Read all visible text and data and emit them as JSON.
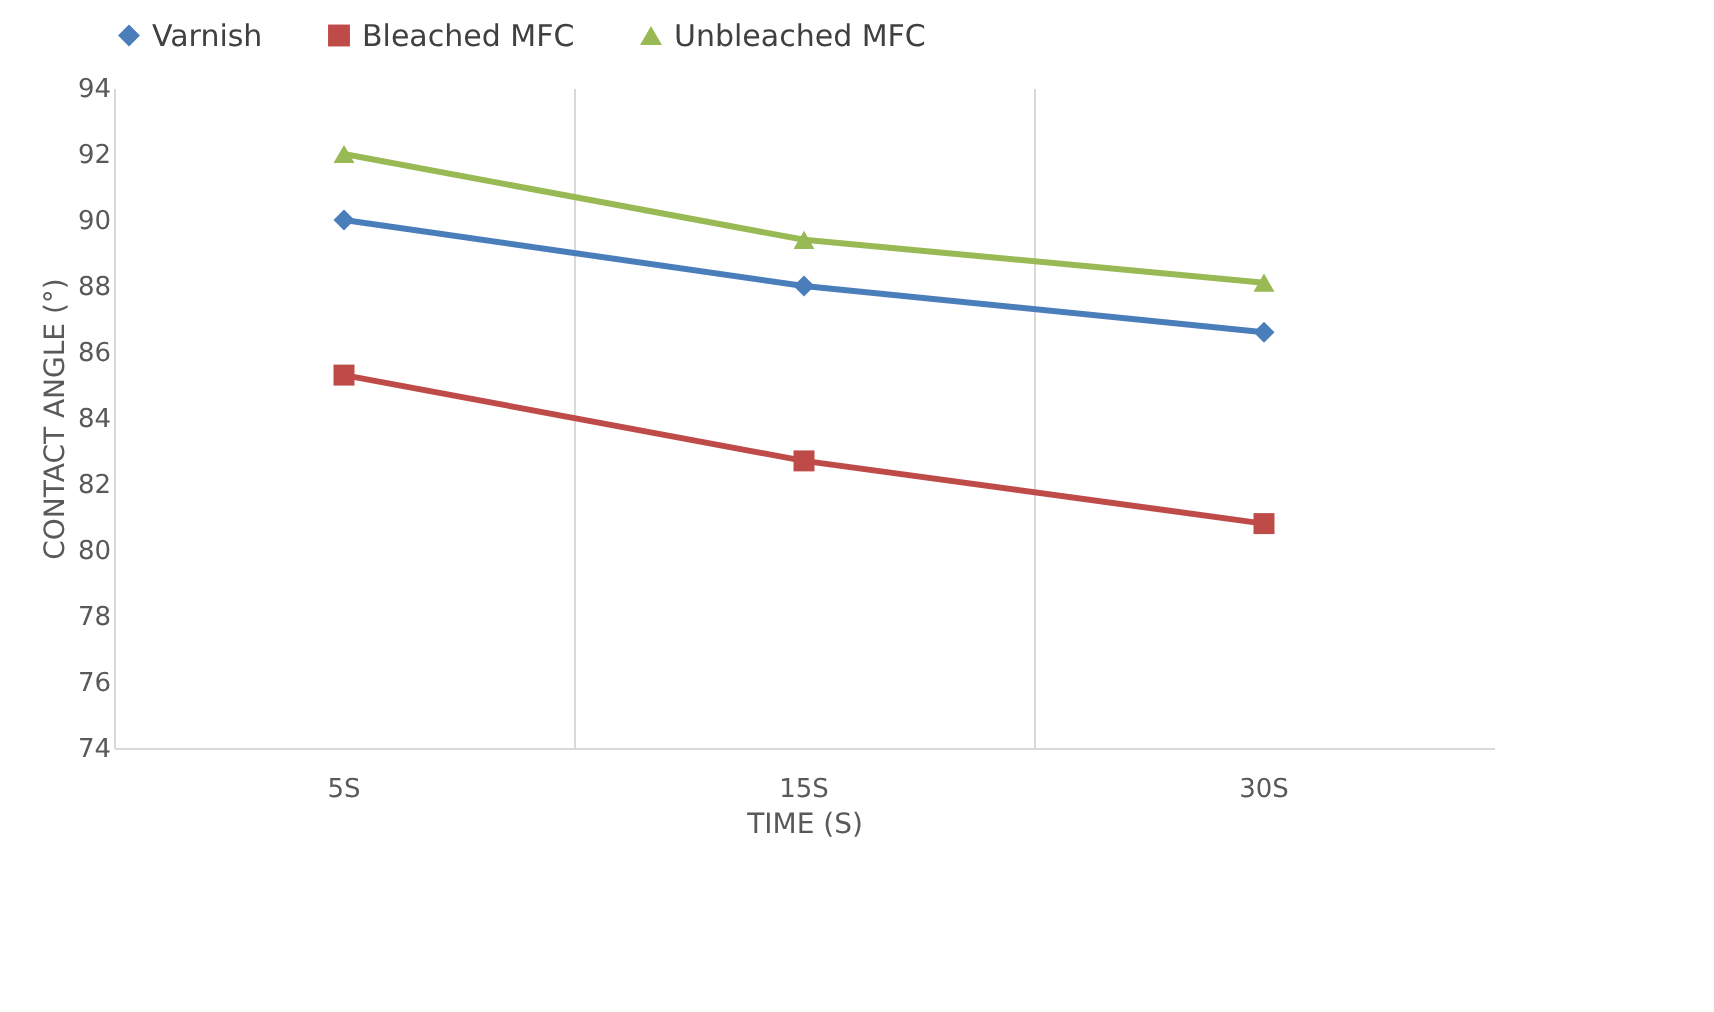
{
  "chart_data": {
    "type": "line",
    "xlabel": "TIME (S)",
    "ylabel": "CONTACT ANGLE (°)",
    "categories": [
      "5S",
      "15S",
      "30S"
    ],
    "series": [
      {
        "name": "Varnish",
        "color": "#4a7ebb",
        "marker": "diamond",
        "values": [
          90.0,
          88.0,
          86.6
        ]
      },
      {
        "name": "Bleached MFC",
        "color": "#be4b48",
        "marker": "square",
        "values": [
          85.3,
          82.7,
          80.8
        ]
      },
      {
        "name": "Unbleached MFC",
        "color": "#98b954",
        "marker": "triangle",
        "values": [
          92.0,
          89.4,
          88.1
        ]
      }
    ],
    "ylim": [
      74,
      94
    ],
    "yticks": [
      74,
      76,
      78,
      80,
      82,
      84,
      86,
      88,
      90,
      92,
      94
    ],
    "grid": "x",
    "legend": "top",
    "line_style": "solid"
  }
}
